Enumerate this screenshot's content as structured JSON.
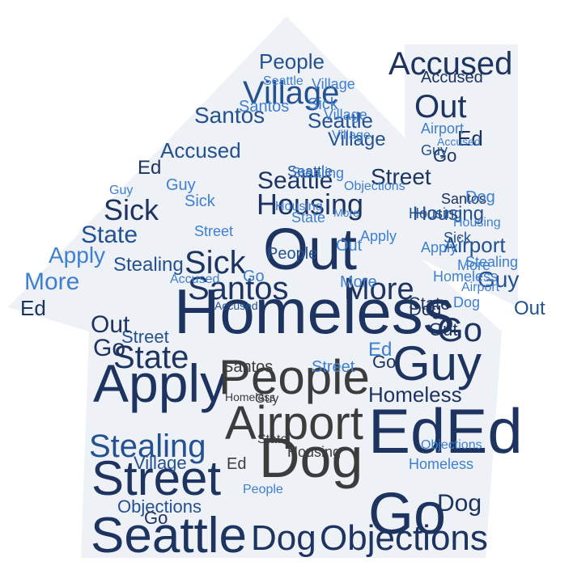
{
  "cloud": {
    "colors": {
      "dark": "#1d3461",
      "mid": "#24518f",
      "light": "#3f7fd0",
      "gray": "#3c3c3c",
      "house_fill": "#eef1f6"
    },
    "words": [
      {
        "text": "Homeless",
        "color": "dark"
      },
      {
        "text": "Out",
        "color": "dark"
      },
      {
        "text": "Guy",
        "color": "dark"
      },
      {
        "text": "EdEd",
        "color": "dark"
      },
      {
        "text": "Apply",
        "color": "dark"
      },
      {
        "text": "Seattle",
        "color": "dark"
      },
      {
        "text": "Street",
        "color": "dark"
      },
      {
        "text": "Dog",
        "color": "gray"
      },
      {
        "text": "Airport",
        "color": "gray"
      },
      {
        "text": "People",
        "color": "gray"
      },
      {
        "text": "Go",
        "color": "dark"
      },
      {
        "text": "Dog",
        "color": "dark"
      },
      {
        "text": "Objections",
        "color": "dark"
      },
      {
        "text": "Santos",
        "color": "dark"
      },
      {
        "text": "Sick",
        "color": "dark"
      },
      {
        "text": "More",
        "color": "dark"
      },
      {
        "text": "Go",
        "color": "dark"
      },
      {
        "text": "Village",
        "color": "mid"
      },
      {
        "text": "Accused",
        "color": "dark"
      },
      {
        "text": "Out",
        "color": "dark"
      },
      {
        "text": "Stealing",
        "color": "mid"
      },
      {
        "text": "State",
        "color": "dark"
      },
      {
        "text": "Housing",
        "color": "dark"
      },
      {
        "text": "Seattle",
        "color": "dark"
      },
      {
        "text": "Sick",
        "color": "dark"
      },
      {
        "text": "State",
        "color": "mid"
      },
      {
        "text": "More",
        "color": "light"
      },
      {
        "text": "Apply",
        "color": "light"
      },
      {
        "text": "Ed",
        "color": "dark"
      },
      {
        "text": "Street",
        "color": "dark"
      },
      {
        "text": "Santos",
        "color": "mid"
      },
      {
        "text": "People",
        "color": "mid"
      },
      {
        "text": "Seattle",
        "color": "mid"
      },
      {
        "text": "Village",
        "color": "mid"
      },
      {
        "text": "Accused",
        "color": "mid"
      },
      {
        "text": "Ed",
        "color": "dark"
      },
      {
        "text": "Guy",
        "color": "mid"
      },
      {
        "text": "Airport",
        "color": "mid"
      },
      {
        "text": "Homeless",
        "color": "dark"
      },
      {
        "text": "Dog",
        "color": "dark"
      },
      {
        "text": "Go",
        "color": "dark"
      },
      {
        "text": "Stealing",
        "color": "mid"
      },
      {
        "text": "Street",
        "color": "mid"
      },
      {
        "text": "Out",
        "color": "dark"
      },
      {
        "text": "Ed",
        "color": "dark"
      },
      {
        "text": "Housing",
        "color": "mid"
      },
      {
        "text": "Out",
        "color": "mid"
      },
      {
        "text": "Village",
        "color": "mid"
      },
      {
        "text": "Objections",
        "color": "mid"
      },
      {
        "text": "Accused",
        "color": "dark"
      },
      {
        "text": "Out",
        "color": "dark"
      },
      {
        "text": "Guy",
        "color": "light"
      },
      {
        "text": "Sick",
        "color": "light"
      },
      {
        "text": "Dog",
        "color": "dark"
      },
      {
        "text": "Go",
        "color": "dark"
      },
      {
        "text": "Santos",
        "color": "gray"
      },
      {
        "text": "Ed",
        "color": "gray"
      },
      {
        "text": "Housing",
        "color": "gray"
      },
      {
        "text": "Guy",
        "color": "gray"
      },
      {
        "text": "Homeless",
        "color": "gray"
      },
      {
        "text": "State",
        "color": "gray"
      },
      {
        "text": "Go",
        "color": "dark"
      },
      {
        "text": "More",
        "color": "light"
      },
      {
        "text": "Housing",
        "color": "mid"
      },
      {
        "text": "Sick",
        "color": "mid"
      },
      {
        "text": "Village",
        "color": "light"
      },
      {
        "text": "State",
        "color": "dark"
      },
      {
        "text": "Go",
        "color": "dark"
      },
      {
        "text": "Santos",
        "color": "dark"
      },
      {
        "text": "People",
        "color": "mid"
      },
      {
        "text": "Accused",
        "color": "mid"
      },
      {
        "text": "Stealing",
        "color": "light"
      },
      {
        "text": "Street",
        "color": "light"
      },
      {
        "text": "Airport",
        "color": "light"
      },
      {
        "text": "Apply",
        "color": "light"
      },
      {
        "text": "More",
        "color": "light"
      },
      {
        "text": "Dog",
        "color": "light"
      },
      {
        "text": "Guy",
        "color": "mid"
      },
      {
        "text": "Seattle",
        "color": "mid"
      },
      {
        "text": "Homeless",
        "color": "light"
      },
      {
        "text": "Objections",
        "color": "light"
      },
      {
        "text": "Ed",
        "color": "light"
      },
      {
        "text": "Go",
        "color": "light"
      },
      {
        "text": "Housing",
        "color": "light"
      },
      {
        "text": "Village",
        "color": "light"
      },
      {
        "text": "Accused",
        "color": "light"
      },
      {
        "text": "Out",
        "color": "light"
      },
      {
        "text": "Sick",
        "color": "light"
      },
      {
        "text": "Street",
        "color": "light"
      },
      {
        "text": "Dog",
        "color": "light"
      },
      {
        "text": "Airport",
        "color": "light"
      },
      {
        "text": "People",
        "color": "light"
      },
      {
        "text": "Santos",
        "color": "light"
      },
      {
        "text": "Stealing",
        "color": "light"
      },
      {
        "text": "State",
        "color": "light"
      },
      {
        "text": "Objections",
        "color": "light"
      },
      {
        "text": "Seattle",
        "color": "light"
      },
      {
        "text": "Housing",
        "color": "light"
      },
      {
        "text": "Apply",
        "color": "light"
      },
      {
        "text": "Guy",
        "color": "light"
      },
      {
        "text": "Homeless",
        "color": "light"
      },
      {
        "text": "More",
        "color": "light"
      },
      {
        "text": "Accused",
        "color": "light"
      },
      {
        "text": "Village",
        "color": "light"
      }
    ]
  }
}
